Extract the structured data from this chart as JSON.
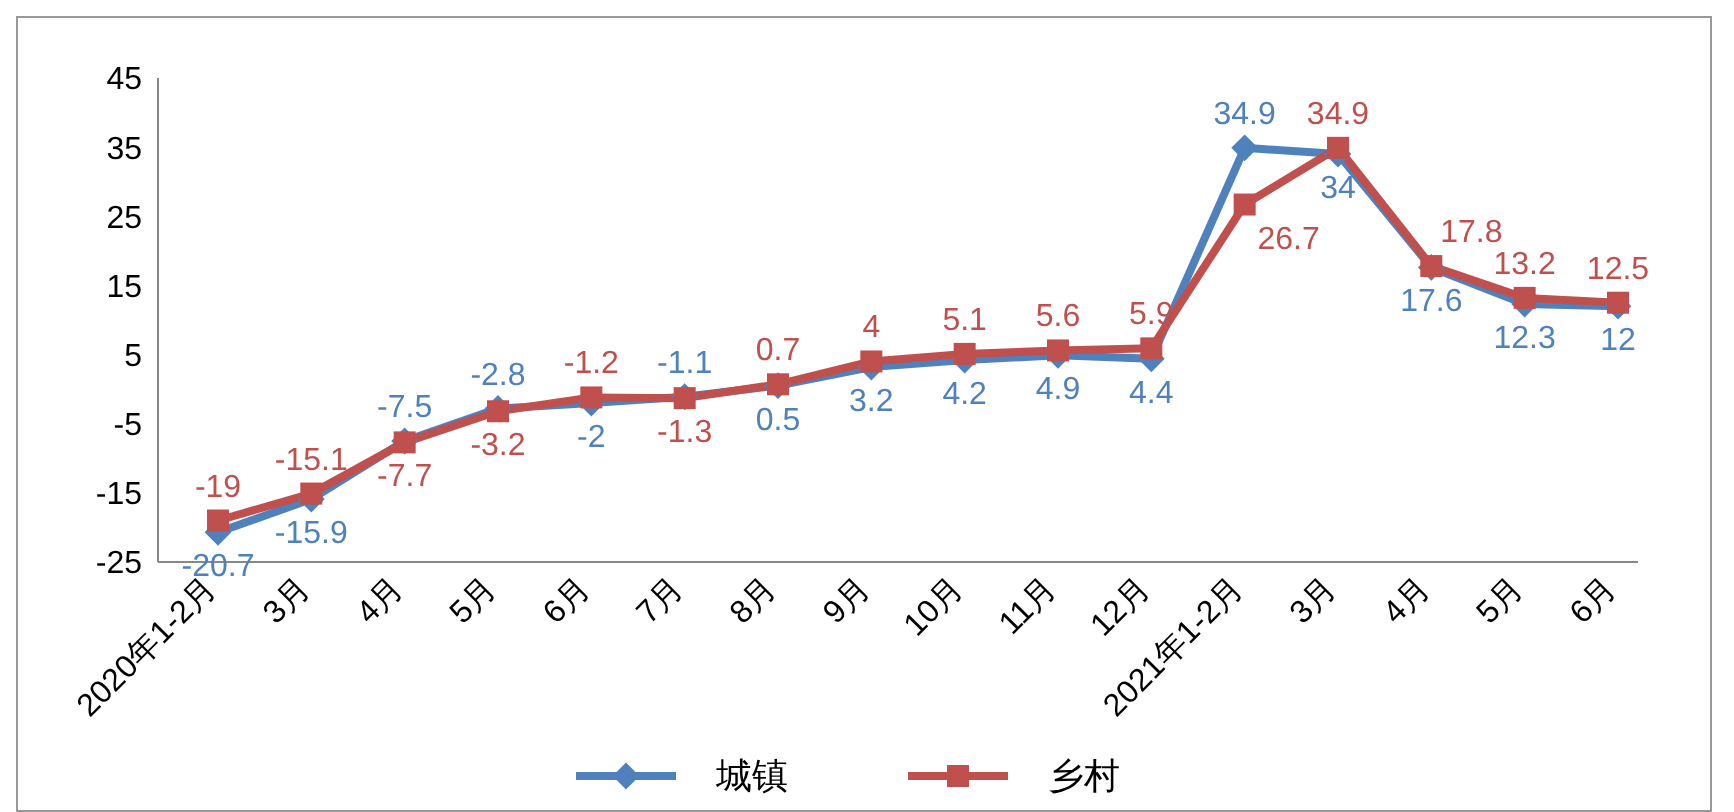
{
  "chart_data": {
    "type": "line",
    "categories": [
      "2020年1-2月",
      "3月",
      "4月",
      "5月",
      "6月",
      "7月",
      "8月",
      "9月",
      "10月",
      "11月",
      "12月",
      "2021年1-2月",
      "3月",
      "4月",
      "5月",
      "6月"
    ],
    "series": [
      {
        "name": "城镇",
        "color": "#4f81bd",
        "marker": "diamond",
        "values": [
          -20.7,
          -15.9,
          -7.5,
          -2.8,
          -2,
          -1.1,
          0.5,
          3.2,
          4.2,
          4.9,
          4.4,
          34.9,
          34,
          17.6,
          12.3,
          12
        ]
      },
      {
        "name": "乡村",
        "color": "#c0504d",
        "marker": "square",
        "values": [
          -19,
          -15.1,
          -7.7,
          -3.2,
          -1.2,
          -1.3,
          0.7,
          4,
          5.1,
          5.6,
          5.9,
          26.7,
          34.9,
          17.8,
          13.2,
          12.5
        ]
      }
    ],
    "ylim": [
      -25,
      45
    ],
    "yticks": [
      -25,
      -15,
      -5,
      5,
      15,
      25,
      35,
      45
    ],
    "grid": false,
    "legend": "bottom",
    "data_labels": true
  }
}
